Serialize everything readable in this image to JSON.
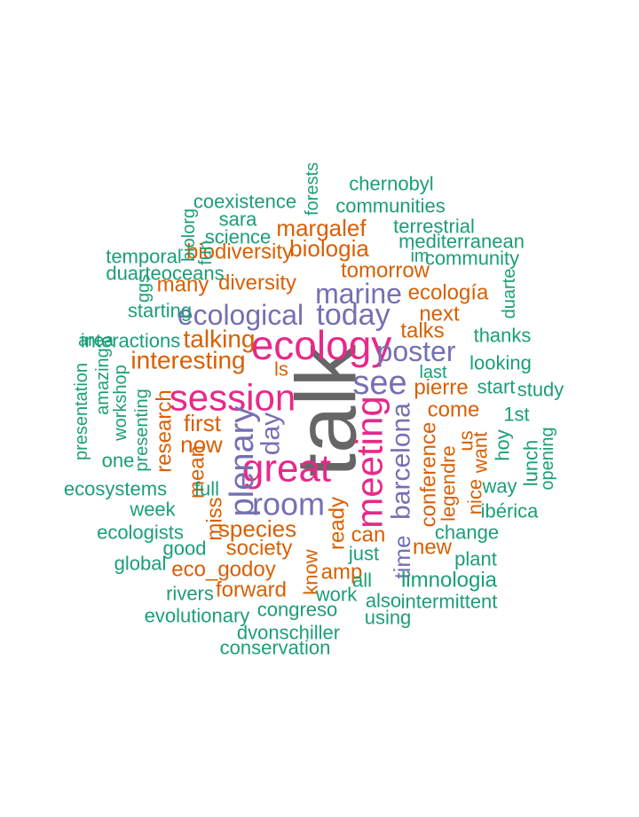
{
  "colors": {
    "gray": "#666666",
    "magenta": "#e7298a",
    "purple": "#7570b3",
    "orange": "#d95f02",
    "green": "#1b9e77"
  },
  "words": [
    {
      "text": "talk",
      "color": "gray"
    },
    {
      "text": "ecology",
      "color": "magenta"
    },
    {
      "text": "session",
      "color": "magenta"
    },
    {
      "text": "great",
      "color": "magenta"
    },
    {
      "text": "meeting",
      "color": "magenta"
    },
    {
      "text": "see",
      "color": "purple"
    },
    {
      "text": "today",
      "color": "purple"
    },
    {
      "text": "plenary",
      "color": "purple"
    },
    {
      "text": "room",
      "color": "purple"
    },
    {
      "text": "marine",
      "color": "purple"
    },
    {
      "text": "ecological",
      "color": "purple"
    },
    {
      "text": "poster",
      "color": "purple"
    },
    {
      "text": "barcelona",
      "color": "purple"
    },
    {
      "text": "time",
      "color": "purple"
    },
    {
      "text": "day",
      "color": "purple"
    },
    {
      "text": "talking",
      "color": "orange"
    },
    {
      "text": "interesting",
      "color": "orange"
    },
    {
      "text": "margalef",
      "color": "orange"
    },
    {
      "text": "biologia",
      "color": "orange"
    },
    {
      "text": "biodiversity",
      "color": "orange"
    },
    {
      "text": "diversity",
      "color": "orange"
    },
    {
      "text": "many",
      "color": "orange"
    },
    {
      "text": "tomorrow",
      "color": "orange"
    },
    {
      "text": "ecología",
      "color": "orange"
    },
    {
      "text": "next",
      "color": "orange"
    },
    {
      "text": "talks",
      "color": "orange"
    },
    {
      "text": "pierre",
      "color": "orange"
    },
    {
      "text": "come",
      "color": "orange"
    },
    {
      "text": "first",
      "color": "orange"
    },
    {
      "text": "now",
      "color": "orange"
    },
    {
      "text": "research",
      "color": "orange"
    },
    {
      "text": "species",
      "color": "orange"
    },
    {
      "text": "society",
      "color": "orange"
    },
    {
      "text": "eco_godoy",
      "color": "orange"
    },
    {
      "text": "forward",
      "color": "orange"
    },
    {
      "text": "can",
      "color": "orange"
    },
    {
      "text": "new",
      "color": "orange"
    },
    {
      "text": "amp",
      "color": "orange"
    },
    {
      "text": "ready",
      "color": "orange"
    },
    {
      "text": "know",
      "color": "orange"
    },
    {
      "text": "conference",
      "color": "orange"
    },
    {
      "text": "legendre",
      "color": "orange"
    },
    {
      "text": "us",
      "color": "orange"
    },
    {
      "text": "want",
      "color": "orange"
    },
    {
      "text": "nice",
      "color": "orange"
    },
    {
      "text": "ls",
      "color": "orange"
    },
    {
      "text": "miss",
      "color": "orange"
    },
    {
      "text": "mean",
      "color": "orange"
    },
    {
      "text": "chernobyl",
      "color": "green"
    },
    {
      "text": "communities",
      "color": "green"
    },
    {
      "text": "coexistence",
      "color": "green"
    },
    {
      "text": "sara",
      "color": "green"
    },
    {
      "text": "terrestrial",
      "color": "green"
    },
    {
      "text": "mediterranean",
      "color": "green"
    },
    {
      "text": "community",
      "color": "green"
    },
    {
      "text": "science",
      "color": "green"
    },
    {
      "text": "temporal",
      "color": "green"
    },
    {
      "text": "duarteoceans",
      "color": "green"
    },
    {
      "text": "starting",
      "color": "green"
    },
    {
      "text": "interactions",
      "color": "green"
    },
    {
      "text": "forests",
      "color": "green"
    },
    {
      "text": "biolorg",
      "color": "green"
    },
    {
      "text": "ggs",
      "color": "green"
    },
    {
      "text": "fun",
      "color": "green"
    },
    {
      "text": "im",
      "color": "green"
    },
    {
      "text": "duarte",
      "color": "green"
    },
    {
      "text": "thanks",
      "color": "green"
    },
    {
      "text": "looking",
      "color": "green"
    },
    {
      "text": "last",
      "color": "green"
    },
    {
      "text": "start",
      "color": "green"
    },
    {
      "text": "study",
      "color": "green"
    },
    {
      "text": "1st",
      "color": "green"
    },
    {
      "text": "hoy",
      "color": "green"
    },
    {
      "text": "lunch",
      "color": "green"
    },
    {
      "text": "opening",
      "color": "green"
    },
    {
      "text": "way",
      "color": "green"
    },
    {
      "text": "ibérica",
      "color": "green"
    },
    {
      "text": "change",
      "color": "green"
    },
    {
      "text": "plant",
      "color": "green"
    },
    {
      "text": "limnologia",
      "color": "green"
    },
    {
      "text": "intermittent",
      "color": "green"
    },
    {
      "text": "using",
      "color": "green"
    },
    {
      "text": "also",
      "color": "green"
    },
    {
      "text": "work",
      "color": "green"
    },
    {
      "text": "congreso",
      "color": "green"
    },
    {
      "text": "just",
      "color": "green"
    },
    {
      "text": "all",
      "color": "green"
    },
    {
      "text": "dvonschiller",
      "color": "green"
    },
    {
      "text": "conservation",
      "color": "green"
    },
    {
      "text": "evolutionary",
      "color": "green"
    },
    {
      "text": "rivers",
      "color": "green"
    },
    {
      "text": "global",
      "color": "green"
    },
    {
      "text": "good",
      "color": "green"
    },
    {
      "text": "ecologists",
      "color": "green"
    },
    {
      "text": "week",
      "color": "green"
    },
    {
      "text": "ecosystems",
      "color": "green"
    },
    {
      "text": "full",
      "color": "green"
    },
    {
      "text": "one",
      "color": "green"
    },
    {
      "text": "presentation",
      "color": "green"
    },
    {
      "text": "amazing",
      "color": "green"
    },
    {
      "text": "workshop",
      "color": "green"
    },
    {
      "text": "presenting",
      "color": "green"
    },
    {
      "text": "area",
      "color": "green"
    }
  ]
}
